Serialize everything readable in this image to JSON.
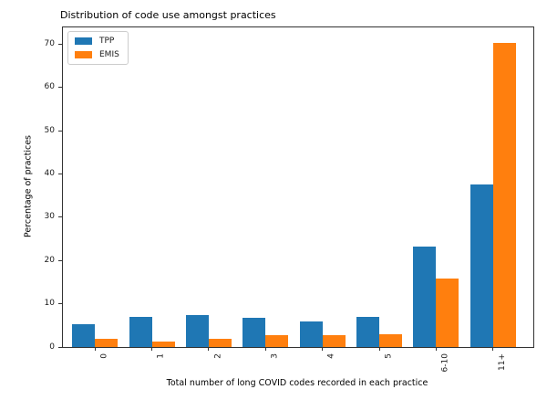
{
  "title": "Distribution of code use amongst practices",
  "chart_data": {
    "type": "bar",
    "title": "Distribution of code use amongst practices",
    "xlabel": "Total number of long COVID codes recorded in each practice",
    "ylabel": "Percentage of practices",
    "categories": [
      "0",
      "1",
      "2",
      "3",
      "4",
      "5",
      "6-10",
      "11+"
    ],
    "series": [
      {
        "name": "TPP",
        "color": "#1f77b4",
        "values": [
          5.3,
          6.9,
          7.4,
          6.8,
          6.0,
          7.0,
          23.2,
          37.5
        ]
      },
      {
        "name": "EMIS",
        "color": "#ff7f0e",
        "values": [
          2.0,
          1.3,
          2.0,
          2.8,
          2.8,
          3.0,
          15.9,
          70.4
        ]
      }
    ],
    "ylim": [
      0,
      73.9
    ],
    "yticks": [
      0,
      10,
      20,
      30,
      40,
      50,
      60,
      70
    ],
    "xtick_rotation": 90,
    "grid": false,
    "legend_position": "upper-left"
  },
  "legend": {
    "items": [
      {
        "label": "TPP",
        "color": "#1f77b4"
      },
      {
        "label": "EMIS",
        "color": "#ff7f0e"
      }
    ]
  }
}
